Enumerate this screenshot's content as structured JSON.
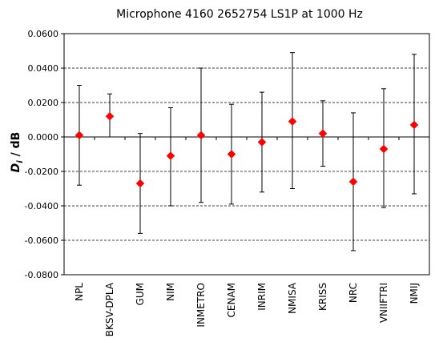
{
  "chart_data": {
    "type": "scatter",
    "title": "Microphone 4160 2652754  LS1P at 1000 Hz",
    "ylabel": {
      "symbol": "D",
      "subscript": "i",
      "unit": " / dB"
    },
    "xlabel": "",
    "ylim": [
      -0.08,
      0.06
    ],
    "yticks": [
      0.06,
      0.04,
      0.02,
      0.0,
      -0.02,
      -0.04,
      -0.06,
      -0.08
    ],
    "ytick_labels": [
      "0.0600",
      "0.0400",
      "0.0200",
      "0.0000",
      "-0.0200",
      "-0.0400",
      "-0.0600",
      "-0.0800"
    ],
    "grid": {
      "horizontal": true,
      "style": "dashed"
    },
    "marker_color": "#ff0000",
    "errorbar_color": "#000000",
    "categories": [
      "NPL",
      "BKSV-DPLA",
      "GUM",
      "NIM",
      "INMETRO",
      "CENAM",
      "INRIM",
      "NMISA",
      "KRISS",
      "NRC",
      "VNIIFTRI",
      "NMIJ"
    ],
    "values": [
      0.001,
      0.012,
      -0.027,
      -0.011,
      0.001,
      -0.01,
      -0.003,
      0.009,
      0.002,
      -0.026,
      -0.007,
      0.007
    ],
    "error_upper": [
      0.03,
      0.025,
      0.002,
      0.017,
      0.04,
      0.019,
      0.026,
      0.049,
      0.021,
      0.014,
      0.028,
      0.048
    ],
    "error_lower": [
      -0.028,
      0.0,
      -0.056,
      -0.04,
      -0.038,
      -0.039,
      -0.032,
      -0.03,
      -0.017,
      -0.066,
      -0.041,
      -0.033
    ]
  }
}
